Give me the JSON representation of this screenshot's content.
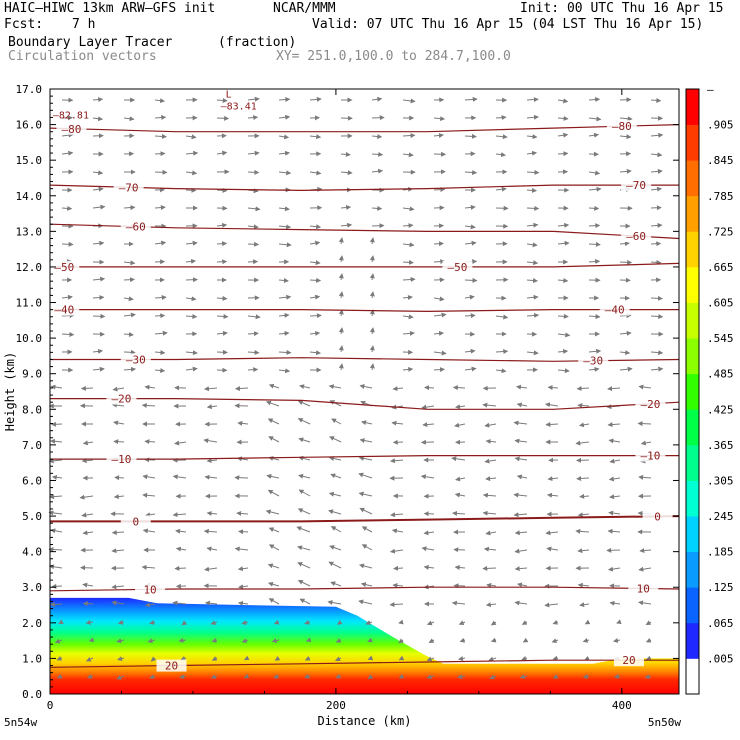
{
  "header": {
    "model": "HAIC–HIWC 13km ARW–GFS init",
    "org": "NCAR/MMM",
    "init": "Init: 00 UTC Thu 16 Apr 15",
    "fcst_label": "Fcst:",
    "fcst_value": "7 h",
    "valid": "Valid: 07 UTC Thu 16 Apr 15 (04 LST Thu 16 Apr 15)",
    "field": "Boundary Layer Tracer",
    "field_units": "(fraction)",
    "vectors": "Circulation vectors",
    "xy": "XY= 251.0,100.0 to 284.7,100.0"
  },
  "chart_data": {
    "type": "heatmap",
    "title": "Boundary Layer Tracer",
    "units": "fraction",
    "xlabel": "Distance (km)",
    "ylabel": "Height (km)",
    "xlim": [
      0,
      440
    ],
    "ylim": [
      0,
      17
    ],
    "x_ticks": [
      0,
      200,
      400
    ],
    "x_tick_labels": [
      "0",
      "200",
      "400"
    ],
    "x_end_labels": {
      "left": "5n54w",
      "right": "5n50w"
    },
    "y_ticks": [
      0.0,
      1.0,
      2.0,
      3.0,
      4.0,
      5.0,
      6.0,
      7.0,
      8.0,
      9.0,
      10.0,
      11.0,
      12.0,
      13.0,
      14.0,
      15.0,
      16.0,
      17.0
    ],
    "y_tick_labels": [
      "0.0",
      "1.0",
      "2.0",
      "3.0",
      "4.0",
      "5.0",
      "6.0",
      "7.0",
      "8.0",
      "9.0",
      "10.0",
      "11.0",
      "12.0",
      "13.0",
      "14.0",
      "15.0",
      "16.0",
      "17.0"
    ],
    "colorbar": {
      "levels": [
        0.005,
        0.065,
        0.125,
        0.185,
        0.245,
        0.305,
        0.365,
        0.425,
        0.485,
        0.545,
        0.605,
        0.665,
        0.725,
        0.785,
        0.845,
        0.905
      ],
      "level_labels": [
        ".005",
        ".065",
        ".125",
        ".185",
        ".245",
        ".305",
        ".365",
        ".425",
        ".485",
        ".545",
        ".605",
        ".665",
        ".725",
        ".785",
        ".845",
        ".905"
      ],
      "top_label": "–",
      "colors": [
        "#ffffff",
        "#1e28ff",
        "#0a64ff",
        "#0a9bff",
        "#00d2ff",
        "#00ffd2",
        "#00ff8c",
        "#00ff46",
        "#32ff00",
        "#8cff00",
        "#c8ff00",
        "#ffff00",
        "#ffd200",
        "#ffa000",
        "#ff6e00",
        "#ff3c00",
        "#ff0000"
      ]
    },
    "tracer_top_km": [
      [
        0,
        2.7
      ],
      [
        55,
        2.7
      ],
      [
        75,
        2.55
      ],
      [
        200,
        2.45
      ],
      [
        215,
        2.2
      ],
      [
        240,
        1.6
      ],
      [
        262,
        1.1
      ],
      [
        275,
        0.85
      ],
      [
        380,
        0.85
      ],
      [
        400,
        1.0
      ],
      [
        440,
        1.0
      ]
    ],
    "temperature_contours": [
      {
        "value": -80,
        "label": "–80",
        "height_km": [
          15.9,
          15.8,
          15.8,
          15.8,
          15.9,
          16.0
        ],
        "label_x_km": [
          15,
          400
        ]
      },
      {
        "value": -70,
        "label": "–70",
        "height_km": [
          14.3,
          14.2,
          14.15,
          14.2,
          14.3,
          14.3
        ],
        "label_x_km": [
          55,
          410
        ]
      },
      {
        "value": -60,
        "label": "–60",
        "height_km": [
          13.2,
          13.1,
          13.05,
          13.0,
          13.0,
          12.8
        ],
        "label_x_km": [
          60,
          410
        ]
      },
      {
        "value": -50,
        "label": "–50",
        "height_km": [
          12.0,
          12.0,
          12.0,
          12.0,
          12.0,
          12.1
        ],
        "label_x_km": [
          10,
          285
        ]
      },
      {
        "value": -40,
        "label": "–40",
        "height_km": [
          10.8,
          10.8,
          10.8,
          10.75,
          10.8,
          10.8
        ],
        "label_x_km": [
          10,
          395
        ]
      },
      {
        "value": -30,
        "label": "–30",
        "height_km": [
          9.4,
          9.4,
          9.45,
          9.4,
          9.35,
          9.4
        ],
        "label_x_km": [
          60,
          380
        ]
      },
      {
        "value": -20,
        "label": "–20",
        "height_km": [
          8.3,
          8.3,
          8.25,
          8.0,
          8.0,
          8.2
        ],
        "label_x_km": [
          50,
          420
        ]
      },
      {
        "value": -10,
        "label": "–10",
        "height_km": [
          6.6,
          6.6,
          6.65,
          6.7,
          6.7,
          6.7
        ],
        "label_x_km": [
          50,
          420
        ]
      },
      {
        "value": 0,
        "label": "0",
        "height_km": [
          4.85,
          4.85,
          4.85,
          4.9,
          4.95,
          5.0
        ],
        "label_x_km": [
          60,
          425
        ]
      },
      {
        "value": 10,
        "label": "10",
        "height_km": [
          2.9,
          2.95,
          2.95,
          3.0,
          3.0,
          2.95
        ],
        "label_x_km": [
          70,
          415
        ]
      },
      {
        "value": 20,
        "label": "20",
        "height_km": [
          0.75,
          0.8,
          0.85,
          0.9,
          0.95,
          0.95
        ],
        "label_x_km": [
          85,
          405
        ]
      }
    ],
    "contour_x_km": [
      0,
      88,
      176,
      264,
      352,
      440
    ],
    "extrema": [
      {
        "marker": "L",
        "label": "–83.41",
        "x_km": 125,
        "y_km": 16.65
      },
      {
        "marker": "",
        "label": "–82.81",
        "x_km": 2,
        "y_km": 16.4
      }
    ]
  }
}
